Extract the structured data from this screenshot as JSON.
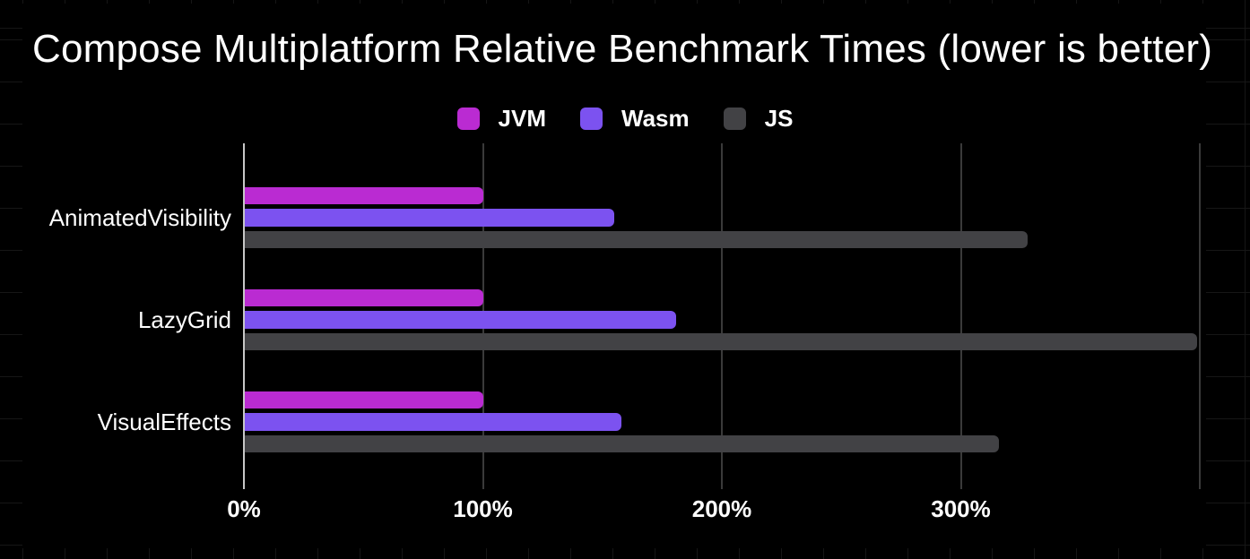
{
  "chart_data": {
    "type": "bar",
    "orientation": "horizontal",
    "title": "Compose Multiplatform Relative Benchmark Times (lower is better)",
    "categories": [
      "AnimatedVisibility",
      "LazyGrid",
      "VisualEffects"
    ],
    "series": [
      {
        "name": "JVM",
        "color": "#ba2bd2",
        "values": [
          100,
          100,
          100
        ]
      },
      {
        "name": "Wasm",
        "color": "#7c52f0",
        "values": [
          155,
          181,
          158
        ]
      },
      {
        "name": "JS",
        "color": "#424245",
        "values": [
          328,
          399,
          316
        ]
      }
    ],
    "x_axis": {
      "unit": "%",
      "min": 0,
      "max": 400,
      "gridline_values": [
        0,
        100,
        200,
        300,
        400
      ],
      "tick_labels": [
        {
          "value": 0,
          "label": "0%"
        },
        {
          "value": 100,
          "label": "100%"
        },
        {
          "value": 200,
          "label": "200%"
        },
        {
          "value": 300,
          "label": "300%"
        }
      ]
    },
    "legend_position": "top",
    "grid": true,
    "background": "#000000"
  },
  "colors": {
    "zero_line": "#c7c7c7",
    "gridline": "#3a3a3a",
    "text": "#ffffff",
    "canvas_grid": "#161616"
  }
}
